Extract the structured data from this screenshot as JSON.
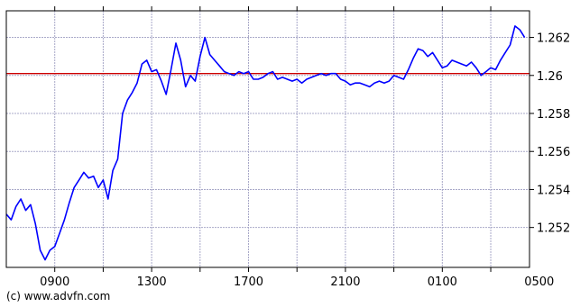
{
  "chart_data": {
    "type": "line",
    "title": "",
    "xlabel": "",
    "ylabel": "",
    "x_tick_labels": [
      "0900",
      "1300",
      "1700",
      "2100",
      "0100",
      "0500"
    ],
    "y_tick_labels": [
      "1.252",
      "1.254",
      "1.256",
      "1.258",
      "1.26",
      "1.262"
    ],
    "y_ticks": [
      1.252,
      1.254,
      1.256,
      1.258,
      1.26,
      1.262
    ],
    "ylim": [
      1.2499,
      1.2634
    ],
    "xlim": [
      0,
      21.6
    ],
    "grid": true,
    "reference_line": {
      "value": 1.2601,
      "color": "#cc0000"
    },
    "series": [
      {
        "color": "#0000ff",
        "x": [
          0,
          0.2,
          0.4,
          0.6,
          0.8,
          1.0,
          1.2,
          1.4,
          1.6,
          1.8,
          2.0,
          2.2,
          2.4,
          2.6,
          2.8,
          3.0,
          3.2,
          3.4,
          3.6,
          3.8,
          4.0,
          4.2,
          4.4,
          4.6,
          4.8,
          5.0,
          5.2,
          5.4,
          5.6,
          5.8,
          6.0,
          6.2,
          6.4,
          6.6,
          6.8,
          7.0,
          7.2,
          7.4,
          7.6,
          7.8,
          8.0,
          8.2,
          8.4,
          8.6,
          8.8,
          9.0,
          9.2,
          9.4,
          9.6,
          9.8,
          10.0,
          10.2,
          10.4,
          10.6,
          10.8,
          11.0,
          11.2,
          11.4,
          11.6,
          11.8,
          12.0,
          12.2,
          12.4,
          12.6,
          12.8,
          13.0,
          13.2,
          13.4,
          13.6,
          13.8,
          14.0,
          14.2,
          14.4,
          14.6,
          14.8,
          15.0,
          15.2,
          15.4,
          15.6,
          15.8,
          16.0,
          16.2,
          16.4,
          16.6,
          16.8,
          17.0,
          17.2,
          17.4,
          17.6,
          17.8,
          18.0,
          18.2,
          18.4,
          18.6,
          18.8,
          19.0,
          19.2,
          19.4,
          19.6,
          19.8,
          20.0,
          20.2,
          20.4,
          20.6,
          20.8,
          21.0,
          21.2,
          21.4
        ],
        "y": [
          1.2527,
          1.2524,
          1.2531,
          1.2535,
          1.2529,
          1.2532,
          1.2522,
          1.2508,
          1.2503,
          1.2508,
          1.251,
          1.2517,
          1.2524,
          1.2533,
          1.2541,
          1.2545,
          1.2549,
          1.2546,
          1.2547,
          1.2541,
          1.2545,
          1.2535,
          1.255,
          1.2556,
          1.258,
          1.2587,
          1.2591,
          1.2596,
          1.2606,
          1.2608,
          1.2602,
          1.2603,
          1.2597,
          1.259,
          1.2603,
          1.2617,
          1.2608,
          1.2594,
          1.26,
          1.2597,
          1.261,
          1.262,
          1.2611,
          1.2608,
          1.2605,
          1.2602,
          1.2601,
          1.26,
          1.2602,
          1.2601,
          1.2602,
          1.2598,
          1.2598,
          1.2599,
          1.2601,
          1.2602,
          1.2598,
          1.2599,
          1.2598,
          1.2597,
          1.2598,
          1.2596,
          1.2598,
          1.2599,
          1.26,
          1.2601,
          1.26,
          1.2601,
          1.2601,
          1.2598,
          1.2597,
          1.2595,
          1.2596,
          1.2596,
          1.2595,
          1.2594,
          1.2596,
          1.2597,
          1.2596,
          1.2597,
          1.26,
          1.2599,
          1.2598,
          1.2603,
          1.2609,
          1.2614,
          1.2613,
          1.261,
          1.2612,
          1.2608,
          1.2604,
          1.2605,
          1.2608,
          1.2607,
          1.2606,
          1.2605,
          1.2607,
          1.2604,
          1.26,
          1.2602,
          1.2604,
          1.2603,
          1.2608,
          1.2612,
          1.2616,
          1.2626,
          1.2624,
          1.262
        ]
      }
    ]
  },
  "footer": {
    "credit": "(c) www.advfn.com"
  }
}
